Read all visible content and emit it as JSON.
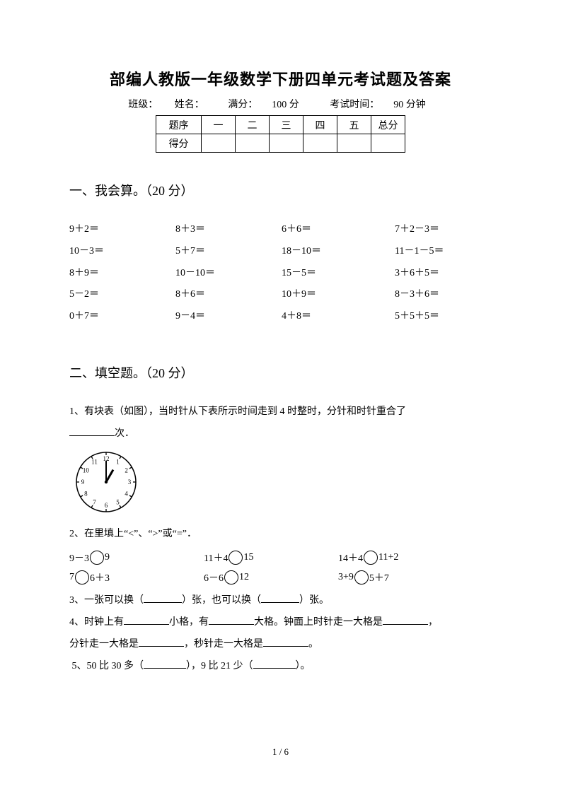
{
  "title": "部编人教版一年级数学下册四单元考试题及答案",
  "meta": {
    "class_label": "班级：",
    "name_label": "姓名：",
    "full_label": "满分：",
    "full_value": "100 分",
    "time_label": "考试时间：",
    "time_value": "90 分钟"
  },
  "score_table": {
    "row1_label": "题序",
    "cols": [
      "一",
      "二",
      "三",
      "四",
      "五",
      "总分"
    ],
    "row2_label": "得分"
  },
  "section1": {
    "heading": "一、我会算。（20 分）",
    "rows": [
      [
        "9＋2＝",
        "8＋3＝",
        "6＋6＝",
        "7＋2－3＝"
      ],
      [
        "10－3＝",
        "5＋7＝",
        "18－10＝",
        "11－1－5＝"
      ],
      [
        "8＋9＝",
        "10－10＝",
        "15－5＝",
        "3＋6＋5＝"
      ],
      [
        "5－2＝",
        "8＋6＝",
        "10＋9＝",
        "8－3＋6＝"
      ],
      [
        "0＋7＝",
        "9－4＝",
        "4＋8＝",
        "5＋5＋5＝"
      ]
    ]
  },
  "section2": {
    "heading": "二、填空题。（20 分）",
    "q1_a": "1、有块表（如图），当时针从下表所示时间走到 4 时整时，分针和时针重合了",
    "q1_b": "次．",
    "clock": {
      "numbers": [
        "12",
        "1",
        "2",
        "3",
        "4",
        "5",
        "6",
        "7",
        "8",
        "9",
        "10",
        "11"
      ],
      "hour_angle_deg": 30,
      "minute_angle_deg": 0,
      "radius": 42,
      "font_size": 9,
      "stroke": "#000"
    },
    "q2_intro": "2、在里填上“<”、“>”或“=”．",
    "q2_rows": [
      [
        [
          "9－3",
          "9"
        ],
        [
          "11＋4",
          "15"
        ],
        [
          "14＋4",
          "11+2"
        ]
      ],
      [
        [
          "7",
          "6＋3"
        ],
        [
          "6－6",
          "12"
        ],
        [
          "3+9",
          "5＋7"
        ]
      ]
    ],
    "q3_a": "3、一张可以换（",
    "q3_b": "）张，也可以换（",
    "q3_c": "）张。",
    "q4_a": "4、时钟上有",
    "q4_b": "小格，有",
    "q4_c": "大格。钟面上时针走一大格是",
    "q4_d": "，",
    "q4_e": "分针走一大格是",
    "q4_f": "，秒针走一大格是",
    "q4_g": "。",
    "q5_a": "5、50 比 30 多（",
    "q5_b": "），9 比 21 少（",
    "q5_c": "）。"
  },
  "footer": "1 / 6"
}
